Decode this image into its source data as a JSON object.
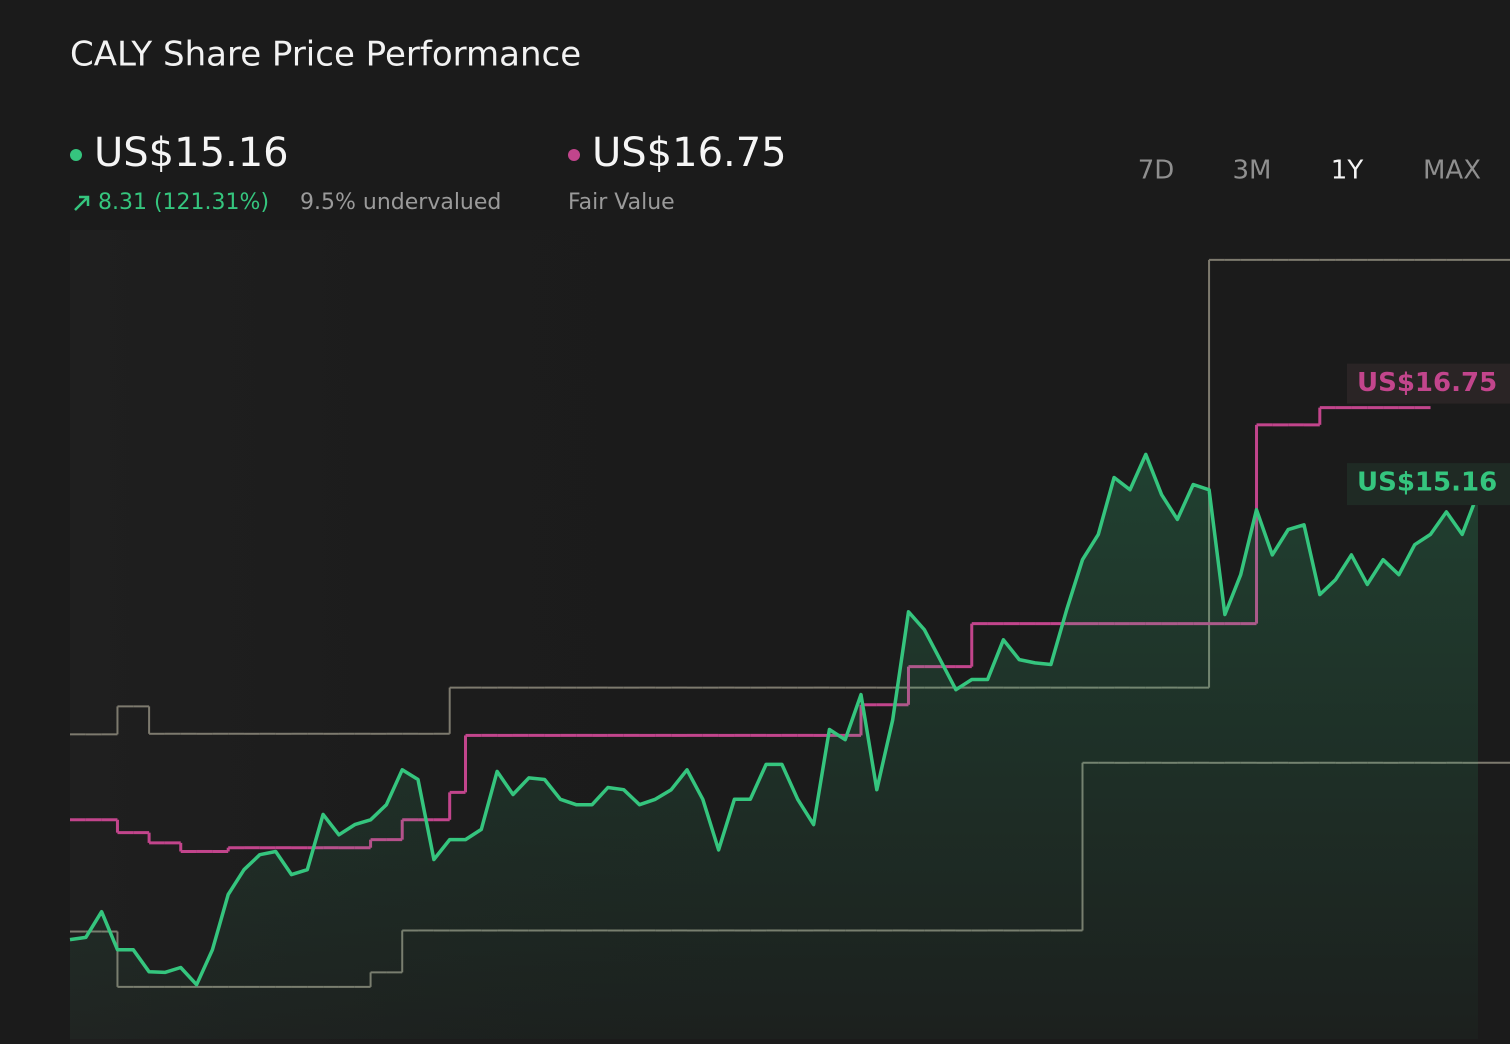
{
  "chart_data": {
    "type": "line",
    "title": "CALY Share Price Performance",
    "price_label": "US$15.16",
    "change_label": "8.31 (121.31%)",
    "valuation_label": "9.5% undervalued",
    "fair_value_label": "US$16.75",
    "periods": [
      "7D",
      "3M",
      "1Y",
      "MAX"
    ],
    "active_period": "1Y",
    "ylim": [
      5,
      20
    ],
    "series": [
      {
        "color": "#7d7a6e",
        "step": true,
        "values": [
          10.67,
          10.67,
          10.67,
          11.19,
          11.19,
          10.68,
          10.68,
          10.68,
          10.68,
          10.68,
          10.68,
          10.68,
          10.68,
          10.68,
          10.68,
          10.68,
          10.68,
          10.68,
          10.68,
          10.68,
          10.68,
          10.68,
          10.68,
          10.68,
          11.54,
          11.54,
          11.54,
          11.54,
          11.54,
          11.54,
          11.54,
          11.54,
          11.54,
          11.54,
          11.54,
          11.54,
          11.54,
          11.54,
          11.54,
          11.54,
          11.54,
          11.54,
          11.54,
          11.54,
          11.54,
          11.54,
          11.54,
          11.54,
          11.54,
          11.54,
          11.54,
          11.54,
          11.54,
          11.54,
          11.54,
          11.54,
          11.54,
          11.54,
          11.54,
          11.54,
          11.54,
          11.54,
          11.54,
          11.54,
          11.54,
          11.54,
          11.54,
          11.54,
          11.54,
          11.54,
          11.54,
          11.54,
          19.5,
          19.5,
          19.5,
          19.5,
          19.5,
          19.5,
          19.5,
          19.5,
          19.5,
          19.5,
          19.5,
          19.5,
          19.5,
          19.5,
          19.5,
          19.5,
          19.5,
          19.5
        ]
      },
      {
        "color": "#7d7a6e",
        "step": true,
        "values": [
          7.0,
          7.0,
          7.0,
          5.97,
          5.97,
          5.97,
          5.97,
          5.97,
          5.97,
          5.97,
          5.97,
          5.97,
          5.97,
          5.97,
          5.97,
          5.97,
          5.97,
          5.97,
          5.97,
          6.24,
          6.24,
          7.02,
          7.02,
          7.02,
          7.02,
          7.02,
          7.02,
          7.02,
          7.02,
          7.02,
          7.02,
          7.02,
          7.02,
          7.02,
          7.02,
          7.02,
          7.02,
          7.02,
          7.02,
          7.02,
          7.02,
          7.02,
          7.02,
          7.02,
          7.02,
          7.02,
          7.02,
          7.02,
          7.02,
          7.02,
          7.02,
          7.02,
          7.02,
          7.02,
          7.02,
          7.02,
          7.02,
          7.02,
          7.02,
          7.02,
          7.02,
          7.02,
          7.02,
          7.02,
          10.14,
          10.14,
          10.14,
          10.14,
          10.14,
          10.14,
          10.14,
          10.14,
          10.14,
          10.14,
          10.14,
          10.14,
          10.14,
          10.14,
          10.14,
          10.14,
          10.14,
          10.14,
          10.14,
          10.14,
          10.14,
          10.14,
          10.14,
          10.14,
          10.14,
          10.14
        ]
      },
      {
        "name": "Fair Value",
        "color": "#c2458c",
        "step": true,
        "values": [
          9.08,
          9.08,
          9.08,
          8.84,
          8.84,
          8.65,
          8.65,
          8.49,
          8.49,
          8.49,
          8.56,
          8.56,
          8.56,
          8.56,
          8.56,
          8.56,
          8.56,
          8.56,
          8.56,
          8.71,
          8.71,
          9.08,
          9.08,
          9.08,
          9.59,
          10.65,
          10.65,
          10.65,
          10.65,
          10.65,
          10.65,
          10.65,
          10.65,
          10.65,
          10.65,
          10.65,
          10.65,
          10.65,
          10.65,
          10.65,
          10.65,
          10.65,
          10.65,
          10.65,
          10.65,
          10.65,
          10.65,
          10.65,
          10.65,
          10.65,
          11.22,
          11.22,
          11.22,
          11.93,
          11.93,
          11.93,
          11.93,
          12.73,
          12.73,
          12.73,
          12.73,
          12.73,
          12.73,
          12.73,
          12.73,
          12.73,
          12.73,
          12.73,
          12.73,
          12.73,
          12.73,
          12.73,
          12.73,
          12.73,
          12.73,
          16.43,
          16.43,
          16.43,
          16.43,
          16.75,
          16.75,
          16.75,
          16.75,
          16.75,
          16.75,
          16.75,
          null,
          null,
          null,
          null
        ]
      },
      {
        "color": "#35c57e",
        "area": true,
        "values": [
          6.85,
          6.89,
          7.37,
          6.66,
          6.66,
          6.25,
          6.24,
          6.33,
          6.01,
          6.66,
          7.69,
          8.15,
          8.43,
          8.49,
          8.06,
          8.15,
          9.18,
          8.8,
          8.99,
          9.08,
          9.36,
          10.01,
          9.83,
          8.34,
          8.71,
          8.71,
          8.9,
          9.98,
          9.55,
          9.86,
          9.83,
          9.46,
          9.36,
          9.36,
          9.68,
          9.64,
          9.36,
          9.46,
          9.64,
          10.01,
          9.46,
          8.52,
          9.46,
          9.46,
          10.11,
          10.11,
          9.46,
          8.99,
          10.76,
          10.57,
          11.41,
          9.64,
          10.94,
          12.95,
          12.62,
          12.06,
          11.5,
          11.69,
          11.69,
          12.43,
          12.06,
          12.0,
          11.97,
          12.99,
          13.92,
          14.39,
          15.45,
          15.22,
          15.88,
          15.13,
          14.67,
          15.32,
          15.22,
          12.9,
          13.64,
          14.85,
          14.01,
          14.48,
          14.57,
          13.27,
          13.55,
          14.01,
          13.46,
          13.92,
          13.64,
          14.2,
          14.39,
          14.81,
          14.39,
          15.16
        ]
      }
    ]
  }
}
